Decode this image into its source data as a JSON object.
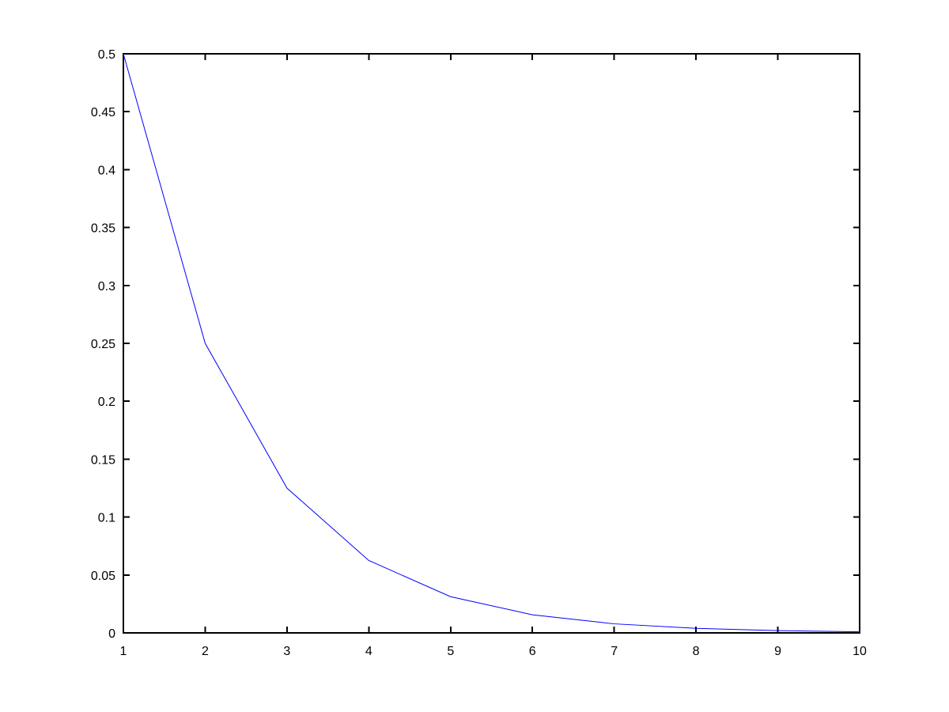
{
  "figure": {
    "background": "#ffffff"
  },
  "chart_data": {
    "type": "line",
    "title": "",
    "xlabel": "",
    "ylabel": "",
    "x": [
      1,
      2,
      3,
      4,
      5,
      6,
      7,
      8,
      9,
      10
    ],
    "y": [
      0.5,
      0.25,
      0.125,
      0.0625,
      0.03125,
      0.015625,
      0.0078125,
      0.00390625,
      0.001953125,
      0.0009765625
    ],
    "xlim": [
      1,
      10
    ],
    "ylim": [
      0,
      0.5
    ],
    "x_ticks": {
      "values": [
        1,
        2,
        3,
        4,
        5,
        6,
        7,
        8,
        9,
        10
      ],
      "labels": [
        "1",
        "2",
        "3",
        "4",
        "5",
        "6",
        "7",
        "8",
        "9",
        "10"
      ]
    },
    "y_ticks": {
      "values": [
        0,
        0.05,
        0.1,
        0.15,
        0.2,
        0.25,
        0.3,
        0.35,
        0.4,
        0.45,
        0.5
      ],
      "labels": [
        "0",
        "0.05",
        "0.1",
        "0.15",
        "0.2",
        "0.25",
        "0.3",
        "0.35",
        "0.4",
        "0.45",
        "0.5"
      ]
    },
    "grid": false,
    "legend": null,
    "line_color": "#0000FF",
    "axis_color": "#000000",
    "tick_label_color": "#000000"
  }
}
